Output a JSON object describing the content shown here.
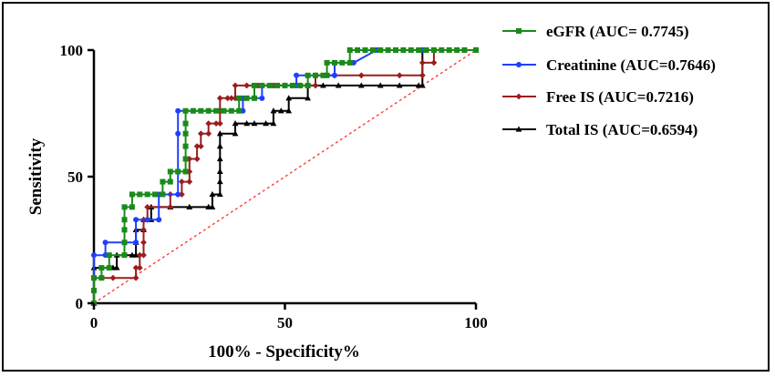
{
  "chart_data": {
    "type": "line",
    "title": "",
    "xlabel": "100% - Specificity%",
    "ylabel": "Sensitivity",
    "xlim": [
      0,
      100
    ],
    "ylim": [
      0,
      100
    ],
    "xticks": [
      "0",
      "50",
      "100"
    ],
    "yticks": [
      "0",
      "50",
      "100"
    ],
    "grid": false,
    "legend_position": "right",
    "reference_line": {
      "style": "dotted",
      "color": "#ff3030",
      "from": [
        0,
        0
      ],
      "to": [
        100,
        100
      ]
    },
    "series": [
      {
        "name": "eGFR (AUC= 0.7745)",
        "color": "#1a8a1a",
        "marker": "square",
        "points": [
          [
            0,
            0
          ],
          [
            0,
            5
          ],
          [
            0,
            10
          ],
          [
            2,
            10
          ],
          [
            2,
            14
          ],
          [
            4,
            14
          ],
          [
            4,
            19
          ],
          [
            8,
            19
          ],
          [
            8,
            24
          ],
          [
            8,
            29
          ],
          [
            8,
            33
          ],
          [
            8,
            38
          ],
          [
            10,
            38
          ],
          [
            10,
            43
          ],
          [
            12,
            43
          ],
          [
            14,
            43
          ],
          [
            16,
            43
          ],
          [
            18,
            43
          ],
          [
            18,
            48
          ],
          [
            20,
            48
          ],
          [
            20,
            52
          ],
          [
            22,
            52
          ],
          [
            24,
            52
          ],
          [
            24,
            57
          ],
          [
            24,
            62
          ],
          [
            24,
            67
          ],
          [
            24,
            71
          ],
          [
            24,
            76
          ],
          [
            26,
            76
          ],
          [
            28,
            76
          ],
          [
            30,
            76
          ],
          [
            32,
            76
          ],
          [
            34,
            76
          ],
          [
            36,
            76
          ],
          [
            38,
            76
          ],
          [
            38,
            81
          ],
          [
            40,
            81
          ],
          [
            42,
            81
          ],
          [
            42,
            86
          ],
          [
            44,
            86
          ],
          [
            46,
            86
          ],
          [
            48,
            86
          ],
          [
            50,
            86
          ],
          [
            52,
            86
          ],
          [
            54,
            86
          ],
          [
            56,
            86
          ],
          [
            56,
            90
          ],
          [
            58,
            90
          ],
          [
            60,
            90
          ],
          [
            61,
            90
          ],
          [
            61,
            95
          ],
          [
            63,
            95
          ],
          [
            65,
            95
          ],
          [
            67,
            95
          ],
          [
            67,
            100
          ],
          [
            69,
            100
          ],
          [
            71,
            100
          ],
          [
            73,
            100
          ],
          [
            75,
            100
          ],
          [
            77,
            100
          ],
          [
            79,
            100
          ],
          [
            81,
            100
          ],
          [
            83,
            100
          ],
          [
            85,
            100
          ],
          [
            87,
            100
          ],
          [
            89,
            100
          ],
          [
            91,
            100
          ],
          [
            93,
            100
          ],
          [
            95,
            100
          ],
          [
            97,
            100
          ],
          [
            100,
            100
          ]
        ]
      },
      {
        "name": "Creatinine (AUC=0.7646)",
        "color": "#1f3fff",
        "marker": "circle",
        "points": [
          [
            0,
            0
          ],
          [
            0,
            19
          ],
          [
            3,
            19
          ],
          [
            3,
            24
          ],
          [
            11,
            24
          ],
          [
            11,
            33
          ],
          [
            14,
            33
          ],
          [
            17,
            33
          ],
          [
            17,
            43
          ],
          [
            22,
            43
          ],
          [
            22,
            52
          ],
          [
            22,
            67
          ],
          [
            22,
            76
          ],
          [
            26,
            76
          ],
          [
            30,
            76
          ],
          [
            39,
            76
          ],
          [
            39,
            81
          ],
          [
            44,
            81
          ],
          [
            44,
            86
          ],
          [
            53,
            86
          ],
          [
            53,
            90
          ],
          [
            63,
            90
          ],
          [
            63,
            95
          ],
          [
            68,
            95
          ],
          [
            74,
            100
          ],
          [
            86,
            100
          ],
          [
            100,
            100
          ]
        ]
      },
      {
        "name": "Free IS (AUC=0.7216)",
        "color": "#9a1e1e",
        "marker": "diamond",
        "points": [
          [
            0,
            0
          ],
          [
            0,
            10
          ],
          [
            5,
            10
          ],
          [
            11,
            10
          ],
          [
            11,
            14
          ],
          [
            12,
            14
          ],
          [
            12,
            19
          ],
          [
            13,
            19
          ],
          [
            13,
            24
          ],
          [
            13,
            29
          ],
          [
            13,
            33
          ],
          [
            14,
            33
          ],
          [
            14,
            38
          ],
          [
            20,
            38
          ],
          [
            20,
            43
          ],
          [
            22,
            43
          ],
          [
            23,
            43
          ],
          [
            23,
            48
          ],
          [
            25,
            48
          ],
          [
            25,
            52
          ],
          [
            25,
            57
          ],
          [
            27,
            57
          ],
          [
            27,
            62
          ],
          [
            28,
            62
          ],
          [
            28,
            67
          ],
          [
            30,
            67
          ],
          [
            30,
            71
          ],
          [
            32,
            71
          ],
          [
            33,
            71
          ],
          [
            33,
            76
          ],
          [
            33,
            81
          ],
          [
            35,
            81
          ],
          [
            36,
            81
          ],
          [
            37,
            81
          ],
          [
            37,
            86
          ],
          [
            40,
            86
          ],
          [
            43,
            86
          ],
          [
            47,
            86
          ],
          [
            50,
            86
          ],
          [
            54,
            86
          ],
          [
            58,
            86
          ],
          [
            58,
            90
          ],
          [
            63,
            90
          ],
          [
            70,
            90
          ],
          [
            80,
            90
          ],
          [
            86,
            90
          ],
          [
            86,
            95
          ],
          [
            89,
            95
          ],
          [
            89,
            100
          ],
          [
            100,
            100
          ]
        ]
      },
      {
        "name": "Total IS (AUC=0.6594)",
        "color": "#000000",
        "marker": "triangle",
        "points": [
          [
            0,
            0
          ],
          [
            0,
            14
          ],
          [
            5,
            14
          ],
          [
            6,
            14
          ],
          [
            6,
            19
          ],
          [
            10,
            19
          ],
          [
            11,
            19
          ],
          [
            11,
            24
          ],
          [
            11,
            29
          ],
          [
            13,
            29
          ],
          [
            13,
            33
          ],
          [
            15,
            33
          ],
          [
            15,
            38
          ],
          [
            20,
            38
          ],
          [
            25,
            38
          ],
          [
            30,
            38
          ],
          [
            31,
            38
          ],
          [
            31,
            43
          ],
          [
            33,
            43
          ],
          [
            33,
            48
          ],
          [
            33,
            52
          ],
          [
            33,
            57
          ],
          [
            33,
            62
          ],
          [
            33,
            67
          ],
          [
            37,
            67
          ],
          [
            37,
            71
          ],
          [
            40,
            71
          ],
          [
            42,
            71
          ],
          [
            45,
            71
          ],
          [
            47,
            71
          ],
          [
            47,
            76
          ],
          [
            49,
            76
          ],
          [
            51,
            76
          ],
          [
            51,
            81
          ],
          [
            56,
            81
          ],
          [
            56,
            86
          ],
          [
            60,
            86
          ],
          [
            64,
            86
          ],
          [
            70,
            86
          ],
          [
            75,
            86
          ],
          [
            80,
            86
          ],
          [
            85,
            86
          ],
          [
            86,
            86
          ],
          [
            86,
            100
          ],
          [
            100,
            100
          ]
        ]
      }
    ]
  }
}
